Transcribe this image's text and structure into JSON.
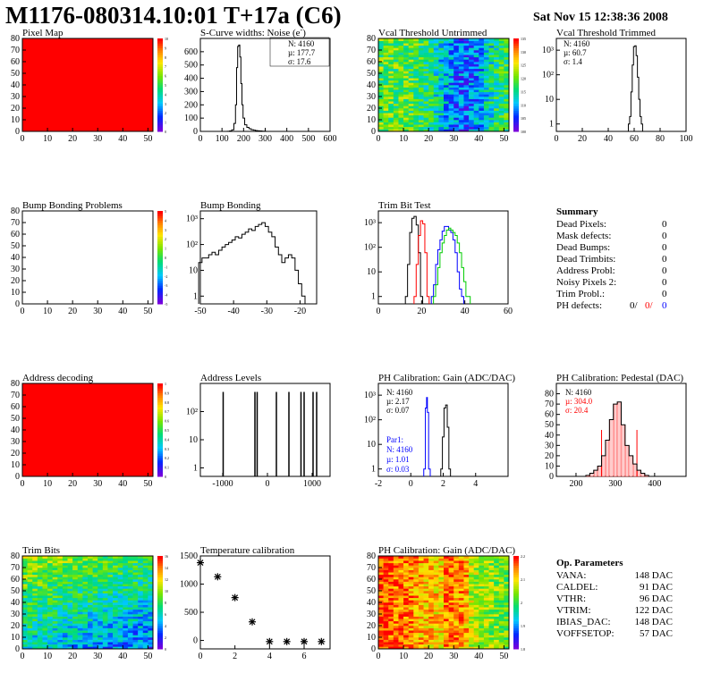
{
  "header": {
    "title": "M1176-080314.10:01 T+17a (C6)",
    "date": "Sat Nov 15 12:38:36 2008"
  },
  "colors": {
    "hist": "#000000",
    "red": "#ff0000",
    "blue": "#0000ff",
    "green": "#00cc00"
  },
  "panels": {
    "pixel_map": {
      "title": "Pixel Map"
    },
    "scurve": {
      "title": "S-Curve widths: Noise (e",
      "title_sup": "-",
      "title_end": ")",
      "stats": [
        "N: 4160",
        "µ: 177.7",
        "σ: 17.6"
      ]
    },
    "vcal_untrimmed": {
      "title": "Vcal Threshold Untrimmed"
    },
    "vcal_trimmed": {
      "title": "Vcal Threshold Trimmed",
      "stats": [
        "N: 4160",
        "µ: 60.7",
        "σ: 1.4"
      ]
    },
    "bump_problems": {
      "title": "Bump Bonding Problems"
    },
    "bump_bonding": {
      "title": "Bump Bonding"
    },
    "trim_bit": {
      "title": "Trim Bit Test"
    },
    "address_decoding": {
      "title": "Address decoding"
    },
    "address_levels": {
      "title": "Address Levels"
    },
    "ph_gain": {
      "title": "PH Calibration: Gain (ADC/DAC)",
      "stats": [
        "N: 4160",
        "µ: 2.17",
        "σ: 0.07"
      ],
      "par1": [
        "Par1:",
        "N: 4160",
        "µ: 1.01",
        "σ: 0.03"
      ]
    },
    "ph_pedestal": {
      "title": "PH Calibration: Pedestal (DAC)",
      "stats": [
        "N: 4160",
        "µ: 304.0",
        "σ: 20.4"
      ]
    },
    "trim_bits": {
      "title": "Trim Bits"
    },
    "temperature": {
      "title": "Temperature calibration"
    },
    "ph_gain_map": {
      "title": "PH Calibration: Gain (ADC/DAC)"
    }
  },
  "summary": {
    "title": "Summary",
    "rows": [
      {
        "label": "Dead Pixels:",
        "value": "0"
      },
      {
        "label": "Mask defects:",
        "value": "0"
      },
      {
        "label": "Dead Bumps:",
        "value": "0"
      },
      {
        "label": "Dead Trimbits:",
        "value": "0"
      },
      {
        "label": "Address Probl:",
        "value": "0"
      },
      {
        "label": "Noisy Pixels 2:",
        "value": "0"
      },
      {
        "label": "Trim Probl.:",
        "value": "0"
      }
    ],
    "ph_defects": {
      "label": "PH defects:",
      "v1": "0/",
      "v2": "0/",
      "v3": "0"
    }
  },
  "op_params": {
    "title": "Op. Parameters",
    "rows": [
      {
        "label": "VANA:",
        "value": "148 DAC"
      },
      {
        "label": "CALDEL:",
        "value": "91 DAC"
      },
      {
        "label": "VTHR:",
        "value": "96 DAC"
      },
      {
        "label": "VTRIM:",
        "value": "122 DAC"
      },
      {
        "label": "IBIAS_DAC:",
        "value": "148 DAC"
      },
      {
        "label": "VOFFSETOP:",
        "value": "57 DAC"
      }
    ]
  },
  "chart_data": [
    {
      "id": "pixel_map",
      "type": "heatmap",
      "title": "Pixel Map",
      "xlim": [
        0,
        52
      ],
      "ylim": [
        0,
        80
      ],
      "xticks": [
        "0",
        "10",
        "20",
        "30",
        "40",
        "50"
      ],
      "yticks": [
        "0",
        "10",
        "20",
        "30",
        "40",
        "50",
        "60",
        "70",
        "80"
      ],
      "zticks": [
        "0",
        "1",
        "2",
        "3",
        "4",
        "5",
        "6",
        "7",
        "8",
        "9",
        "10"
      ],
      "uniform_value": 10
    },
    {
      "id": "scurve",
      "type": "bar",
      "title": "S-Curve widths: Noise (e-)",
      "xlim": [
        0,
        600
      ],
      "ylim": [
        0,
        700
      ],
      "xticks": [
        "0",
        "100",
        "200",
        "300",
        "400",
        "500",
        "600"
      ],
      "yticks": [
        "0",
        "100",
        "200",
        "300",
        "400",
        "500",
        "600"
      ],
      "x": [
        120,
        130,
        140,
        150,
        160,
        165,
        170,
        175,
        180,
        185,
        190,
        195,
        200,
        210,
        220,
        230,
        240,
        250,
        260,
        270,
        280,
        290,
        300
      ],
      "values": [
        0,
        1,
        3,
        12,
        60,
        200,
        480,
        640,
        650,
        560,
        360,
        200,
        100,
        50,
        30,
        20,
        13,
        9,
        6,
        4,
        3,
        2,
        1
      ]
    },
    {
      "id": "vcal_untrimmed",
      "type": "heatmap",
      "title": "Vcal Threshold Untrimmed",
      "xlim": [
        0,
        52
      ],
      "ylim": [
        0,
        80
      ],
      "xticks": [
        "0",
        "10",
        "20",
        "30",
        "40",
        "50"
      ],
      "yticks": [
        "0",
        "10",
        "20",
        "30",
        "40",
        "50",
        "60",
        "70",
        "80"
      ],
      "zticks": [
        "100",
        "105",
        "110",
        "115",
        "120",
        "125",
        "130",
        "135"
      ]
    },
    {
      "id": "vcal_trimmed",
      "type": "bar",
      "title": "Vcal Threshold Trimmed",
      "log_y": true,
      "xlim": [
        0,
        100
      ],
      "ylim": [
        0.5,
        3000
      ],
      "xticks": [
        "0",
        "20",
        "40",
        "60",
        "80",
        "100"
      ],
      "yticks": [
        "1",
        "10",
        "10²",
        "10³"
      ],
      "x": [
        56,
        57,
        58,
        59,
        60,
        61,
        62,
        63,
        64,
        65,
        66
      ],
      "values": [
        1,
        2,
        20,
        250,
        1400,
        1500,
        600,
        80,
        10,
        2,
        1
      ]
    },
    {
      "id": "bump_problems",
      "type": "heatmap",
      "title": "Bump Bonding Problems",
      "xlim": [
        0,
        52
      ],
      "ylim": [
        0,
        80
      ],
      "xticks": [
        "0",
        "10",
        "20",
        "30",
        "40",
        "50"
      ],
      "yticks": [
        "0",
        "10",
        "20",
        "30",
        "40",
        "50",
        "60",
        "70",
        "80"
      ],
      "zticks": [
        "-5",
        "-4",
        "-3",
        "-2",
        "-1",
        "0",
        "1",
        "2",
        "3",
        "4",
        "5"
      ],
      "empty": true
    },
    {
      "id": "bump_bonding",
      "type": "bar",
      "title": "Bump Bonding",
      "log_y": true,
      "xlim": [
        -50,
        -15
      ],
      "ylim": [
        0.5,
        2000
      ],
      "xticks": [
        "-50",
        "-40",
        "-30",
        "-20"
      ],
      "yticks": [
        "1",
        "10",
        "10²",
        "10³"
      ],
      "x": [
        -50,
        -49,
        -48,
        -47,
        -46,
        -45,
        -44,
        -43,
        -42,
        -41,
        -40,
        -39,
        -38,
        -37,
        -36,
        -35,
        -34,
        -33,
        -32,
        -31,
        -30,
        -29,
        -28,
        -27,
        -26,
        -25,
        -24,
        -23,
        -22,
        -21,
        -20,
        -19
      ],
      "values": [
        20,
        30,
        30,
        40,
        50,
        40,
        60,
        80,
        100,
        120,
        150,
        200,
        180,
        250,
        300,
        400,
        350,
        500,
        600,
        700,
        500,
        300,
        200,
        80,
        40,
        20,
        30,
        40,
        30,
        10,
        3,
        1
      ]
    },
    {
      "id": "trim_bit",
      "type": "line",
      "title": "Trim Bit Test",
      "log_y": true,
      "xlim": [
        0,
        60
      ],
      "ylim": [
        0.5,
        3000
      ],
      "xticks": [
        "0",
        "20",
        "40",
        "60"
      ],
      "yticks": [
        "1",
        "10",
        "10²",
        "10³"
      ],
      "series": [
        {
          "color": "black",
          "x": [
            13,
            14,
            15,
            16,
            17,
            18,
            19,
            20
          ],
          "values": [
            1,
            20,
            400,
            1500,
            1800,
            800,
            60,
            1
          ]
        },
        {
          "color": "red",
          "x": [
            17,
            18,
            19,
            20,
            21,
            22,
            23
          ],
          "values": [
            1,
            20,
            300,
            1200,
            900,
            60,
            1
          ]
        },
        {
          "color": "blue",
          "x": [
            25,
            26,
            27,
            28,
            29,
            30,
            31,
            32,
            33,
            34,
            35,
            36,
            37,
            38,
            39
          ],
          "values": [
            1,
            3,
            20,
            80,
            200,
            450,
            700,
            700,
            500,
            400,
            200,
            60,
            10,
            2,
            1
          ]
        },
        {
          "color": "green",
          "x": [
            26,
            27,
            28,
            29,
            30,
            31,
            32,
            33,
            34,
            35,
            36,
            37,
            38,
            39,
            40,
            41,
            42
          ],
          "values": [
            1,
            3,
            15,
            60,
            150,
            300,
            500,
            600,
            500,
            400,
            300,
            150,
            60,
            15,
            4,
            1,
            1
          ]
        }
      ]
    },
    {
      "id": "address_decoding",
      "type": "heatmap",
      "title": "Address decoding",
      "xlim": [
        0,
        52
      ],
      "ylim": [
        0,
        80
      ],
      "xticks": [
        "0",
        "10",
        "20",
        "30",
        "40",
        "50"
      ],
      "yticks": [
        "0",
        "10",
        "20",
        "30",
        "40",
        "50",
        "60",
        "70",
        "80"
      ],
      "zticks": [
        "0",
        "0.1",
        "0.2",
        "0.3",
        "0.4",
        "0.5",
        "0.6",
        "0.7",
        "0.8",
        "0.9",
        "1"
      ],
      "uniform_value": 1
    },
    {
      "id": "address_levels",
      "type": "bar",
      "title": "Address Levels",
      "log_y": true,
      "xlim": [
        -1500,
        1400
      ],
      "ylim": [
        0.5,
        1000
      ],
      "xticks": [
        "-1000",
        "0",
        "1000"
      ],
      "yticks": [
        "1",
        "10",
        "10²"
      ],
      "x": [
        -990,
        -280,
        -230,
        200,
        480,
        750,
        820,
        1020,
        1100
      ],
      "values": [
        500,
        500,
        500,
        500,
        500,
        500,
        500,
        500,
        500
      ]
    },
    {
      "id": "ph_gain",
      "type": "line",
      "title": "PH Calibration: Gain (ADC/DAC)",
      "log_y": true,
      "xlim": [
        -2,
        6
      ],
      "ylim": [
        0.5,
        3000
      ],
      "xticks": [
        "-2",
        "0",
        "2",
        "4"
      ],
      "yticks": [
        "1",
        "10",
        "10²",
        "10³"
      ],
      "series": [
        {
          "color": "black",
          "x": [
            1.9,
            2.0,
            2.1,
            2.2,
            2.3,
            2.4
          ],
          "values": [
            1,
            20,
            300,
            400,
            50,
            1
          ]
        },
        {
          "color": "blue",
          "x": [
            0.85,
            0.95,
            1.0,
            1.05,
            1.15
          ],
          "values": [
            1,
            300,
            800,
            200,
            1
          ]
        }
      ]
    },
    {
      "id": "ph_pedestal",
      "type": "bar",
      "title": "PH Calibration: Pedestal (DAC)",
      "xlim": [
        150,
        480
      ],
      "ylim": [
        0,
        90
      ],
      "xticks": [
        "200",
        "300",
        "400"
      ],
      "yticks": [
        "0",
        "10",
        "20",
        "30",
        "40",
        "50",
        "60",
        "70",
        "80"
      ],
      "x": [
        230,
        240,
        250,
        260,
        270,
        280,
        290,
        300,
        310,
        320,
        330,
        340,
        350,
        360,
        370,
        380
      ],
      "values": [
        1,
        3,
        6,
        10,
        20,
        35,
        55,
        70,
        72,
        50,
        30,
        20,
        12,
        6,
        3,
        1
      ],
      "fit_lines": [
        265,
        355
      ]
    },
    {
      "id": "trim_bits",
      "type": "heatmap",
      "title": "Trim Bits",
      "xlim": [
        0,
        52
      ],
      "ylim": [
        0,
        80
      ],
      "xticks": [
        "0",
        "10",
        "20",
        "30",
        "40",
        "50"
      ],
      "yticks": [
        "0",
        "10",
        "20",
        "30",
        "40",
        "50",
        "60",
        "70",
        "80"
      ],
      "zticks": [
        "0",
        "2",
        "4",
        "6",
        "8",
        "10",
        "12",
        "14",
        "16"
      ]
    },
    {
      "id": "temperature",
      "type": "scatter",
      "title": "Temperature calibration",
      "xlim": [
        0,
        7.5
      ],
      "ylim": [
        -150,
        1500
      ],
      "xticks": [
        "0",
        "2",
        "4",
        "6"
      ],
      "yticks": [
        "0",
        "500",
        "1000",
        "1500"
      ],
      "x": [
        0,
        1,
        2,
        3,
        4,
        5,
        6,
        7
      ],
      "values": [
        1380,
        1130,
        760,
        330,
        -20,
        -20,
        -20,
        -20
      ]
    },
    {
      "id": "ph_gain_map",
      "type": "heatmap",
      "title": "PH Calibration: Gain (ADC/DAC)",
      "xlim": [
        0,
        52
      ],
      "ylim": [
        0,
        80
      ],
      "xticks": [
        "0",
        "10",
        "20",
        "30",
        "40",
        "50"
      ],
      "yticks": [
        "0",
        "10",
        "20",
        "30",
        "40",
        "50",
        "60",
        "70",
        "80"
      ],
      "zticks": [
        "1.8",
        "1.9",
        "2",
        "2.1",
        "2.2"
      ]
    }
  ]
}
